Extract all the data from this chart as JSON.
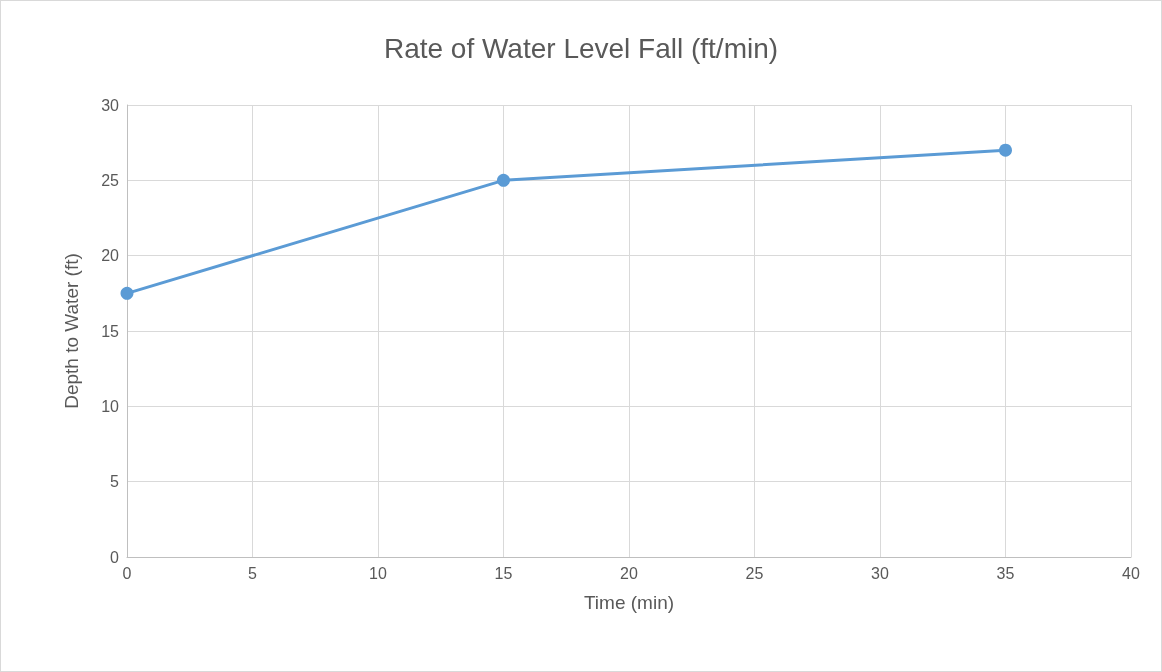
{
  "chart_data": {
    "type": "line",
    "title": "Rate of Water Level Fall (ft/min)",
    "xlabel": "Time (min)",
    "ylabel": "Depth to Water (ft)",
    "x": [
      0,
      15,
      35
    ],
    "series": [
      {
        "color": "#5b9bd5",
        "values": [
          17.5,
          25,
          27
        ]
      }
    ],
    "xlim": [
      0,
      40
    ],
    "xticks": [
      0,
      5,
      10,
      15,
      20,
      25,
      30,
      35,
      40
    ],
    "ylim": [
      0,
      30
    ],
    "yticks": [
      0,
      5,
      10,
      15,
      20,
      25,
      30
    ],
    "grid": true,
    "marker": "circle",
    "line_style": "solid"
  }
}
